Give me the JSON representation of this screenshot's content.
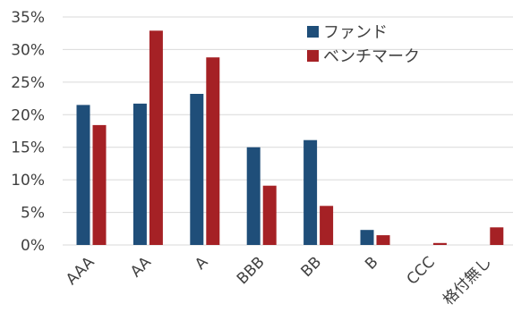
{
  "chart_data": {
    "type": "bar",
    "categories": [
      "AAA",
      "AA",
      "A",
      "BBB",
      "BB",
      "B",
      "CCC",
      "格付無し"
    ],
    "series": [
      {
        "name": "ファンド",
        "color": "#1f4e79",
        "values": [
          21.5,
          21.7,
          23.2,
          15.0,
          16.1,
          2.3,
          0.0,
          0.0
        ]
      },
      {
        "name": "ベンチマーク",
        "color": "#a52125",
        "values": [
          18.4,
          32.9,
          28.8,
          9.1,
          6.0,
          1.5,
          0.3,
          2.7
        ]
      }
    ],
    "ylim": [
      0,
      35
    ],
    "yticks": [
      "0%",
      "5%",
      "10%",
      "15%",
      "20%",
      "25%",
      "30%",
      "35%"
    ],
    "grid": true,
    "legend": "top-right"
  }
}
